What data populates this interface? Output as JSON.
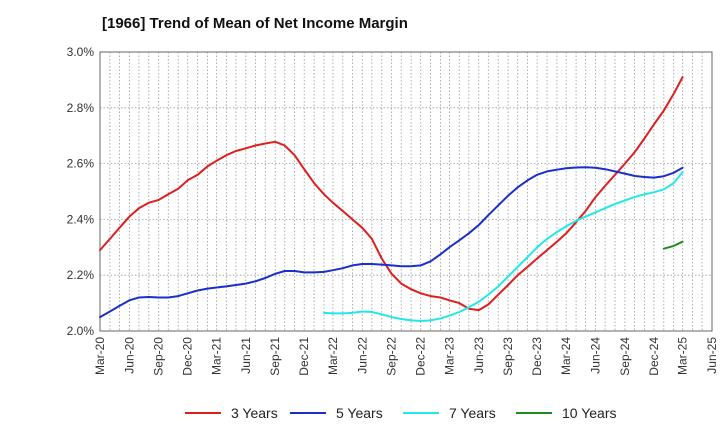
{
  "title": "[1966]  Trend of Mean of Net Income Margin",
  "chart_data": {
    "type": "line",
    "title": "[1966]  Trend of Mean of Net Income Margin",
    "xlabel": "",
    "ylabel": "",
    "ylim": [
      2.0,
      3.0
    ],
    "y_ticks": [
      2.0,
      2.2,
      2.4,
      2.6,
      2.8,
      3.0
    ],
    "y_tick_labels": [
      "2.0%",
      "2.2%",
      "2.4%",
      "2.6%",
      "2.8%",
      "3.0%"
    ],
    "x_ticks": [
      "Mar-20",
      "Jun-20",
      "Sep-20",
      "Dec-20",
      "Mar-21",
      "Jun-21",
      "Sep-21",
      "Dec-21",
      "Mar-22",
      "Jun-22",
      "Sep-22",
      "Dec-22",
      "Mar-23",
      "Jun-23",
      "Sep-23",
      "Dec-23",
      "Mar-24",
      "Jun-24",
      "Sep-24",
      "Dec-24",
      "Mar-25",
      "Jun-25"
    ],
    "grid": true,
    "legend_position": "bottom",
    "series": [
      {
        "name": "3 Years",
        "color": "#dd1f1f",
        "x": [
          "2020-03",
          "2020-04",
          "2020-05",
          "2020-06",
          "2020-07",
          "2020-08",
          "2020-09",
          "2020-10",
          "2020-11",
          "2020-12",
          "2021-01",
          "2021-02",
          "2021-03",
          "2021-04",
          "2021-05",
          "2021-06",
          "2021-07",
          "2021-08",
          "2021-09",
          "2021-10",
          "2021-11",
          "2021-12",
          "2022-01",
          "2022-02",
          "2022-03",
          "2022-04",
          "2022-05",
          "2022-06",
          "2022-07",
          "2022-08",
          "2022-09",
          "2022-10",
          "2022-11",
          "2022-12",
          "2023-01",
          "2023-02",
          "2023-03",
          "2023-04",
          "2023-05",
          "2023-06",
          "2023-07",
          "2023-08",
          "2023-09",
          "2023-10",
          "2023-11",
          "2023-12",
          "2024-01",
          "2024-02",
          "2024-03",
          "2024-04",
          "2024-05",
          "2024-06",
          "2024-07",
          "2024-08",
          "2024-09",
          "2024-10",
          "2024-11",
          "2024-12",
          "2025-01",
          "2025-02",
          "2025-03"
        ],
        "values": [
          2.29,
          2.33,
          2.37,
          2.41,
          2.44,
          2.46,
          2.47,
          2.49,
          2.51,
          2.54,
          2.56,
          2.59,
          2.61,
          2.63,
          2.645,
          2.655,
          2.665,
          2.672,
          2.678,
          2.665,
          2.63,
          2.58,
          2.53,
          2.49,
          2.46,
          2.43,
          2.4,
          2.37,
          2.33,
          2.26,
          2.205,
          2.17,
          2.15,
          2.135,
          2.125,
          2.12,
          2.11,
          2.1,
          2.08,
          2.075,
          2.095,
          2.13,
          2.165,
          2.2,
          2.23,
          2.26,
          2.29,
          2.32,
          2.35,
          2.39,
          2.43,
          2.48,
          2.52,
          2.56,
          2.6,
          2.64,
          2.69,
          2.74,
          2.79,
          2.85,
          2.91
        ]
      },
      {
        "name": "5 Years",
        "color": "#1a2fcc",
        "x": [
          "2020-03",
          "2020-04",
          "2020-05",
          "2020-06",
          "2020-07",
          "2020-08",
          "2020-09",
          "2020-10",
          "2020-11",
          "2020-12",
          "2021-01",
          "2021-02",
          "2021-03",
          "2021-04",
          "2021-05",
          "2021-06",
          "2021-07",
          "2021-08",
          "2021-09",
          "2021-10",
          "2021-11",
          "2021-12",
          "2022-01",
          "2022-02",
          "2022-03",
          "2022-04",
          "2022-05",
          "2022-06",
          "2022-07",
          "2022-08",
          "2022-09",
          "2022-10",
          "2022-11",
          "2022-12",
          "2023-01",
          "2023-02",
          "2023-03",
          "2023-04",
          "2023-05",
          "2023-06",
          "2023-07",
          "2023-08",
          "2023-09",
          "2023-10",
          "2023-11",
          "2023-12",
          "2024-01",
          "2024-02",
          "2024-03",
          "2024-04",
          "2024-05",
          "2024-06",
          "2024-07",
          "2024-08",
          "2024-09",
          "2024-10",
          "2024-11",
          "2024-12",
          "2025-01",
          "2025-02",
          "2025-03"
        ],
        "values": [
          2.05,
          2.07,
          2.09,
          2.11,
          2.12,
          2.122,
          2.12,
          2.12,
          2.125,
          2.135,
          2.145,
          2.152,
          2.156,
          2.16,
          2.165,
          2.17,
          2.178,
          2.19,
          2.205,
          2.215,
          2.215,
          2.21,
          2.21,
          2.212,
          2.218,
          2.225,
          2.235,
          2.24,
          2.24,
          2.238,
          2.235,
          2.232,
          2.232,
          2.235,
          2.25,
          2.275,
          2.3,
          2.325,
          2.35,
          2.38,
          2.415,
          2.45,
          2.485,
          2.515,
          2.54,
          2.56,
          2.572,
          2.578,
          2.583,
          2.586,
          2.587,
          2.585,
          2.58,
          2.572,
          2.564,
          2.556,
          2.552,
          2.55,
          2.555,
          2.567,
          2.585
        ]
      },
      {
        "name": "7 Years",
        "color": "#22e8e8",
        "x": [
          "2022-02",
          "2022-03",
          "2022-04",
          "2022-05",
          "2022-06",
          "2022-07",
          "2022-08",
          "2022-09",
          "2022-10",
          "2022-11",
          "2022-12",
          "2023-01",
          "2023-02",
          "2023-03",
          "2023-04",
          "2023-05",
          "2023-06",
          "2023-07",
          "2023-08",
          "2023-09",
          "2023-10",
          "2023-11",
          "2023-12",
          "2024-01",
          "2024-02",
          "2024-03",
          "2024-04",
          "2024-05",
          "2024-06",
          "2024-07",
          "2024-08",
          "2024-09",
          "2024-10",
          "2024-11",
          "2024-12",
          "2025-01",
          "2025-02",
          "2025-03"
        ],
        "values": [
          2.065,
          2.063,
          2.063,
          2.065,
          2.07,
          2.068,
          2.06,
          2.05,
          2.043,
          2.038,
          2.036,
          2.038,
          2.045,
          2.055,
          2.068,
          2.085,
          2.105,
          2.13,
          2.16,
          2.195,
          2.23,
          2.265,
          2.3,
          2.33,
          2.355,
          2.375,
          2.395,
          2.41,
          2.425,
          2.44,
          2.455,
          2.468,
          2.48,
          2.49,
          2.497,
          2.508,
          2.53,
          2.57
        ]
      },
      {
        "name": "10 Years",
        "color": "#1f8a1f",
        "x": [
          "2025-01",
          "2025-02",
          "2025-03"
        ],
        "values": [
          2.295,
          2.305,
          2.32
        ]
      }
    ]
  }
}
